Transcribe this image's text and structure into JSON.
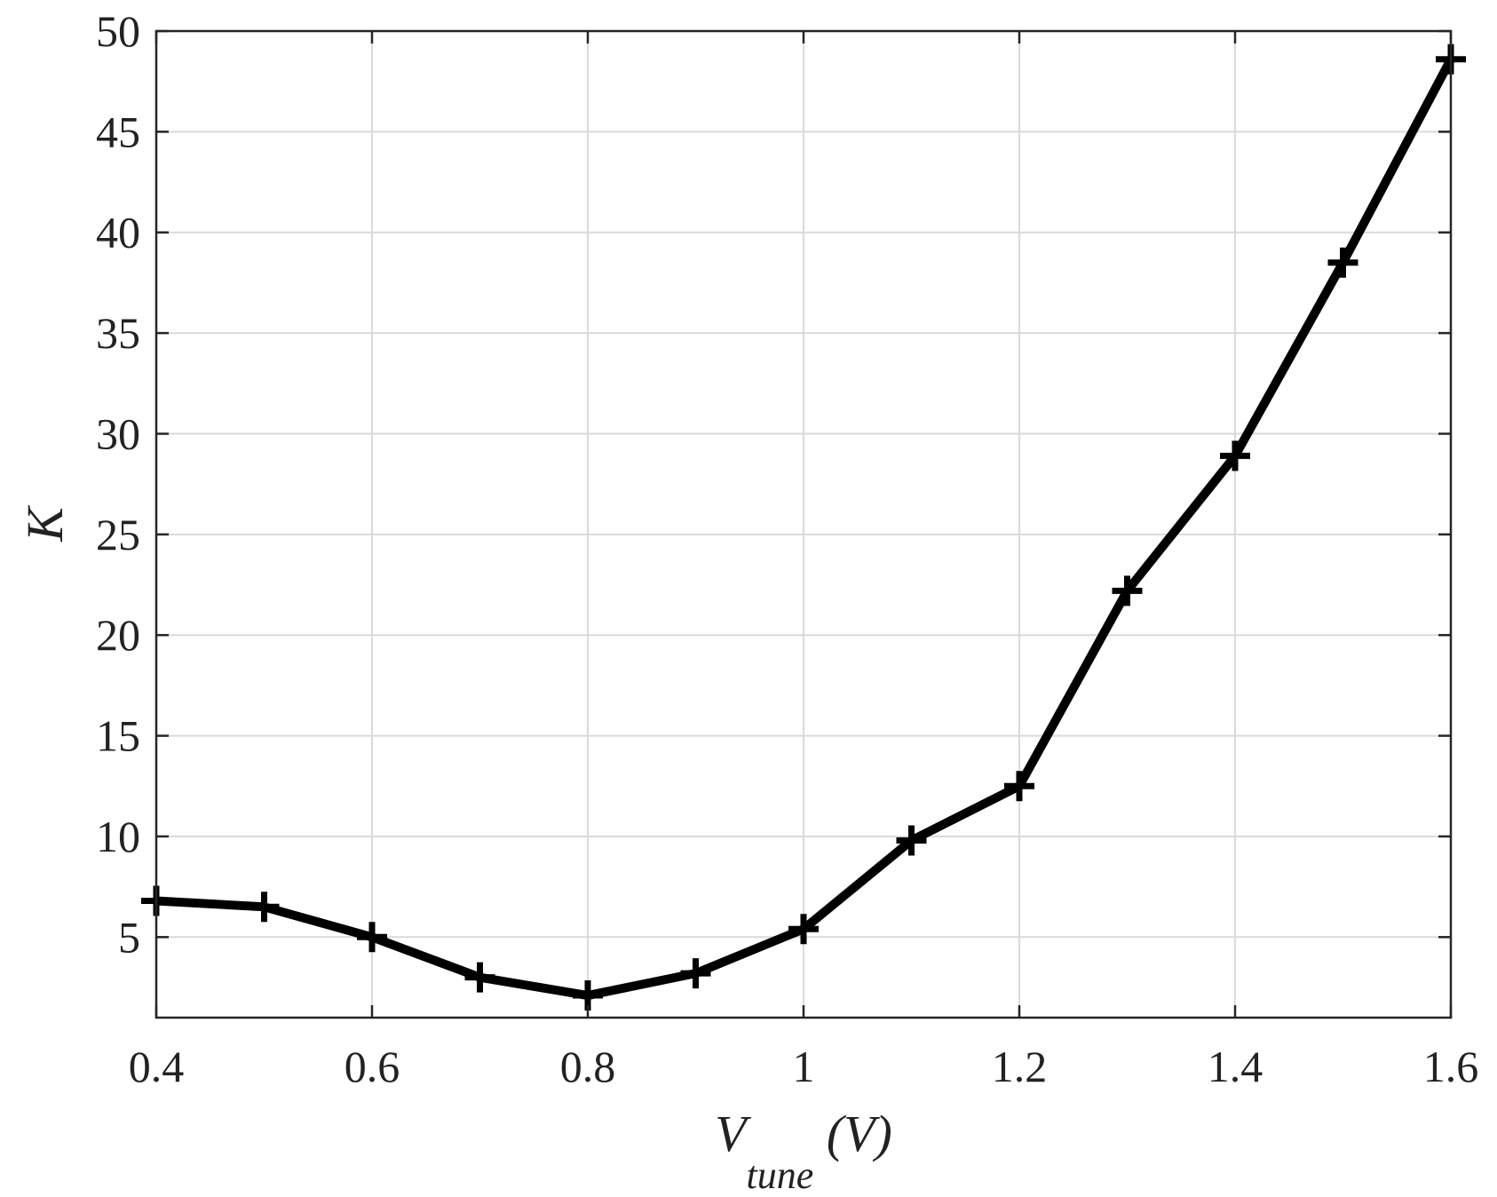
{
  "chart_data": {
    "type": "line",
    "title": "",
    "xlabel": {
      "main": "V",
      "subscript": "tune",
      "suffix": " (V)"
    },
    "ylabel": "K",
    "xlim": [
      0.4,
      1.6
    ],
    "ylim": [
      1,
      50
    ],
    "xticks": [
      0.4,
      0.6,
      0.8,
      1,
      1.2,
      1.4,
      1.6
    ],
    "xtick_labels": [
      "0.4",
      "0.6",
      "0.8",
      "1",
      "1.2",
      "1.4",
      "1.6"
    ],
    "yticks": [
      5,
      10,
      15,
      20,
      25,
      30,
      35,
      40,
      45,
      50
    ],
    "ytick_labels": [
      "5",
      "10",
      "15",
      "20",
      "25",
      "30",
      "35",
      "40",
      "45",
      "50"
    ],
    "grid": true,
    "series": [
      {
        "color": "#000000",
        "marker": "plus",
        "x": [
          0.4,
          0.5,
          0.6,
          0.7,
          0.8,
          0.9,
          1.0,
          1.1,
          1.2,
          1.3,
          1.4,
          1.5,
          1.6
        ],
        "y": [
          6.8,
          6.5,
          5.0,
          3.0,
          2.1,
          3.2,
          5.4,
          9.8,
          12.5,
          22.2,
          28.9,
          38.5,
          48.6
        ]
      }
    ]
  }
}
